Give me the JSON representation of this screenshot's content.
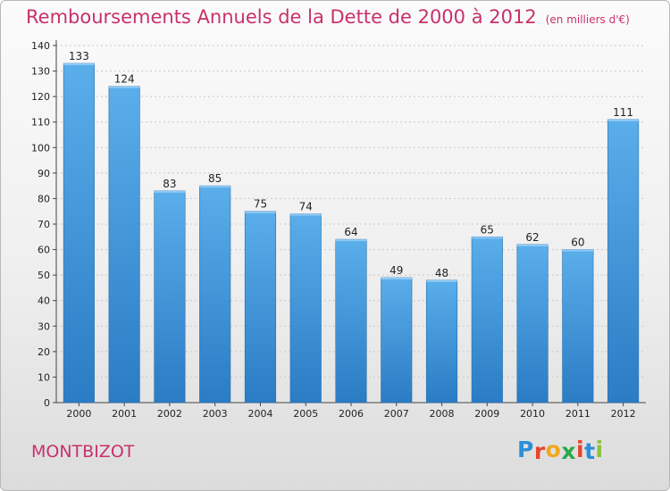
{
  "chart_data": {
    "type": "bar",
    "title": "Remboursements Annuels de la Dette de 2000 à 2012",
    "subtitle": "(en milliers d'€)",
    "categories": [
      "2000",
      "2001",
      "2002",
      "2003",
      "2004",
      "2005",
      "2006",
      "2007",
      "2008",
      "2009",
      "2010",
      "2011",
      "2012"
    ],
    "values": [
      133,
      124,
      83,
      85,
      75,
      74,
      64,
      49,
      48,
      65,
      62,
      60,
      111
    ],
    "ylim": [
      0,
      140
    ],
    "yticks": [
      0,
      10,
      20,
      30,
      40,
      50,
      60,
      70,
      80,
      90,
      100,
      110,
      120,
      130,
      140
    ],
    "grid": true,
    "legend": "none",
    "bar_color": "#3f8fd6"
  },
  "footer": {
    "commune": "MONTBIZOT",
    "brand": {
      "letters": [
        "P",
        "r",
        "o",
        "x",
        "i",
        "t",
        "i"
      ],
      "colors": [
        "#2b8fd9",
        "#e8442d",
        "#f2a81d",
        "#2aa84a",
        "#e8442d",
        "#2b8fd9",
        "#8bc23f"
      ]
    }
  }
}
